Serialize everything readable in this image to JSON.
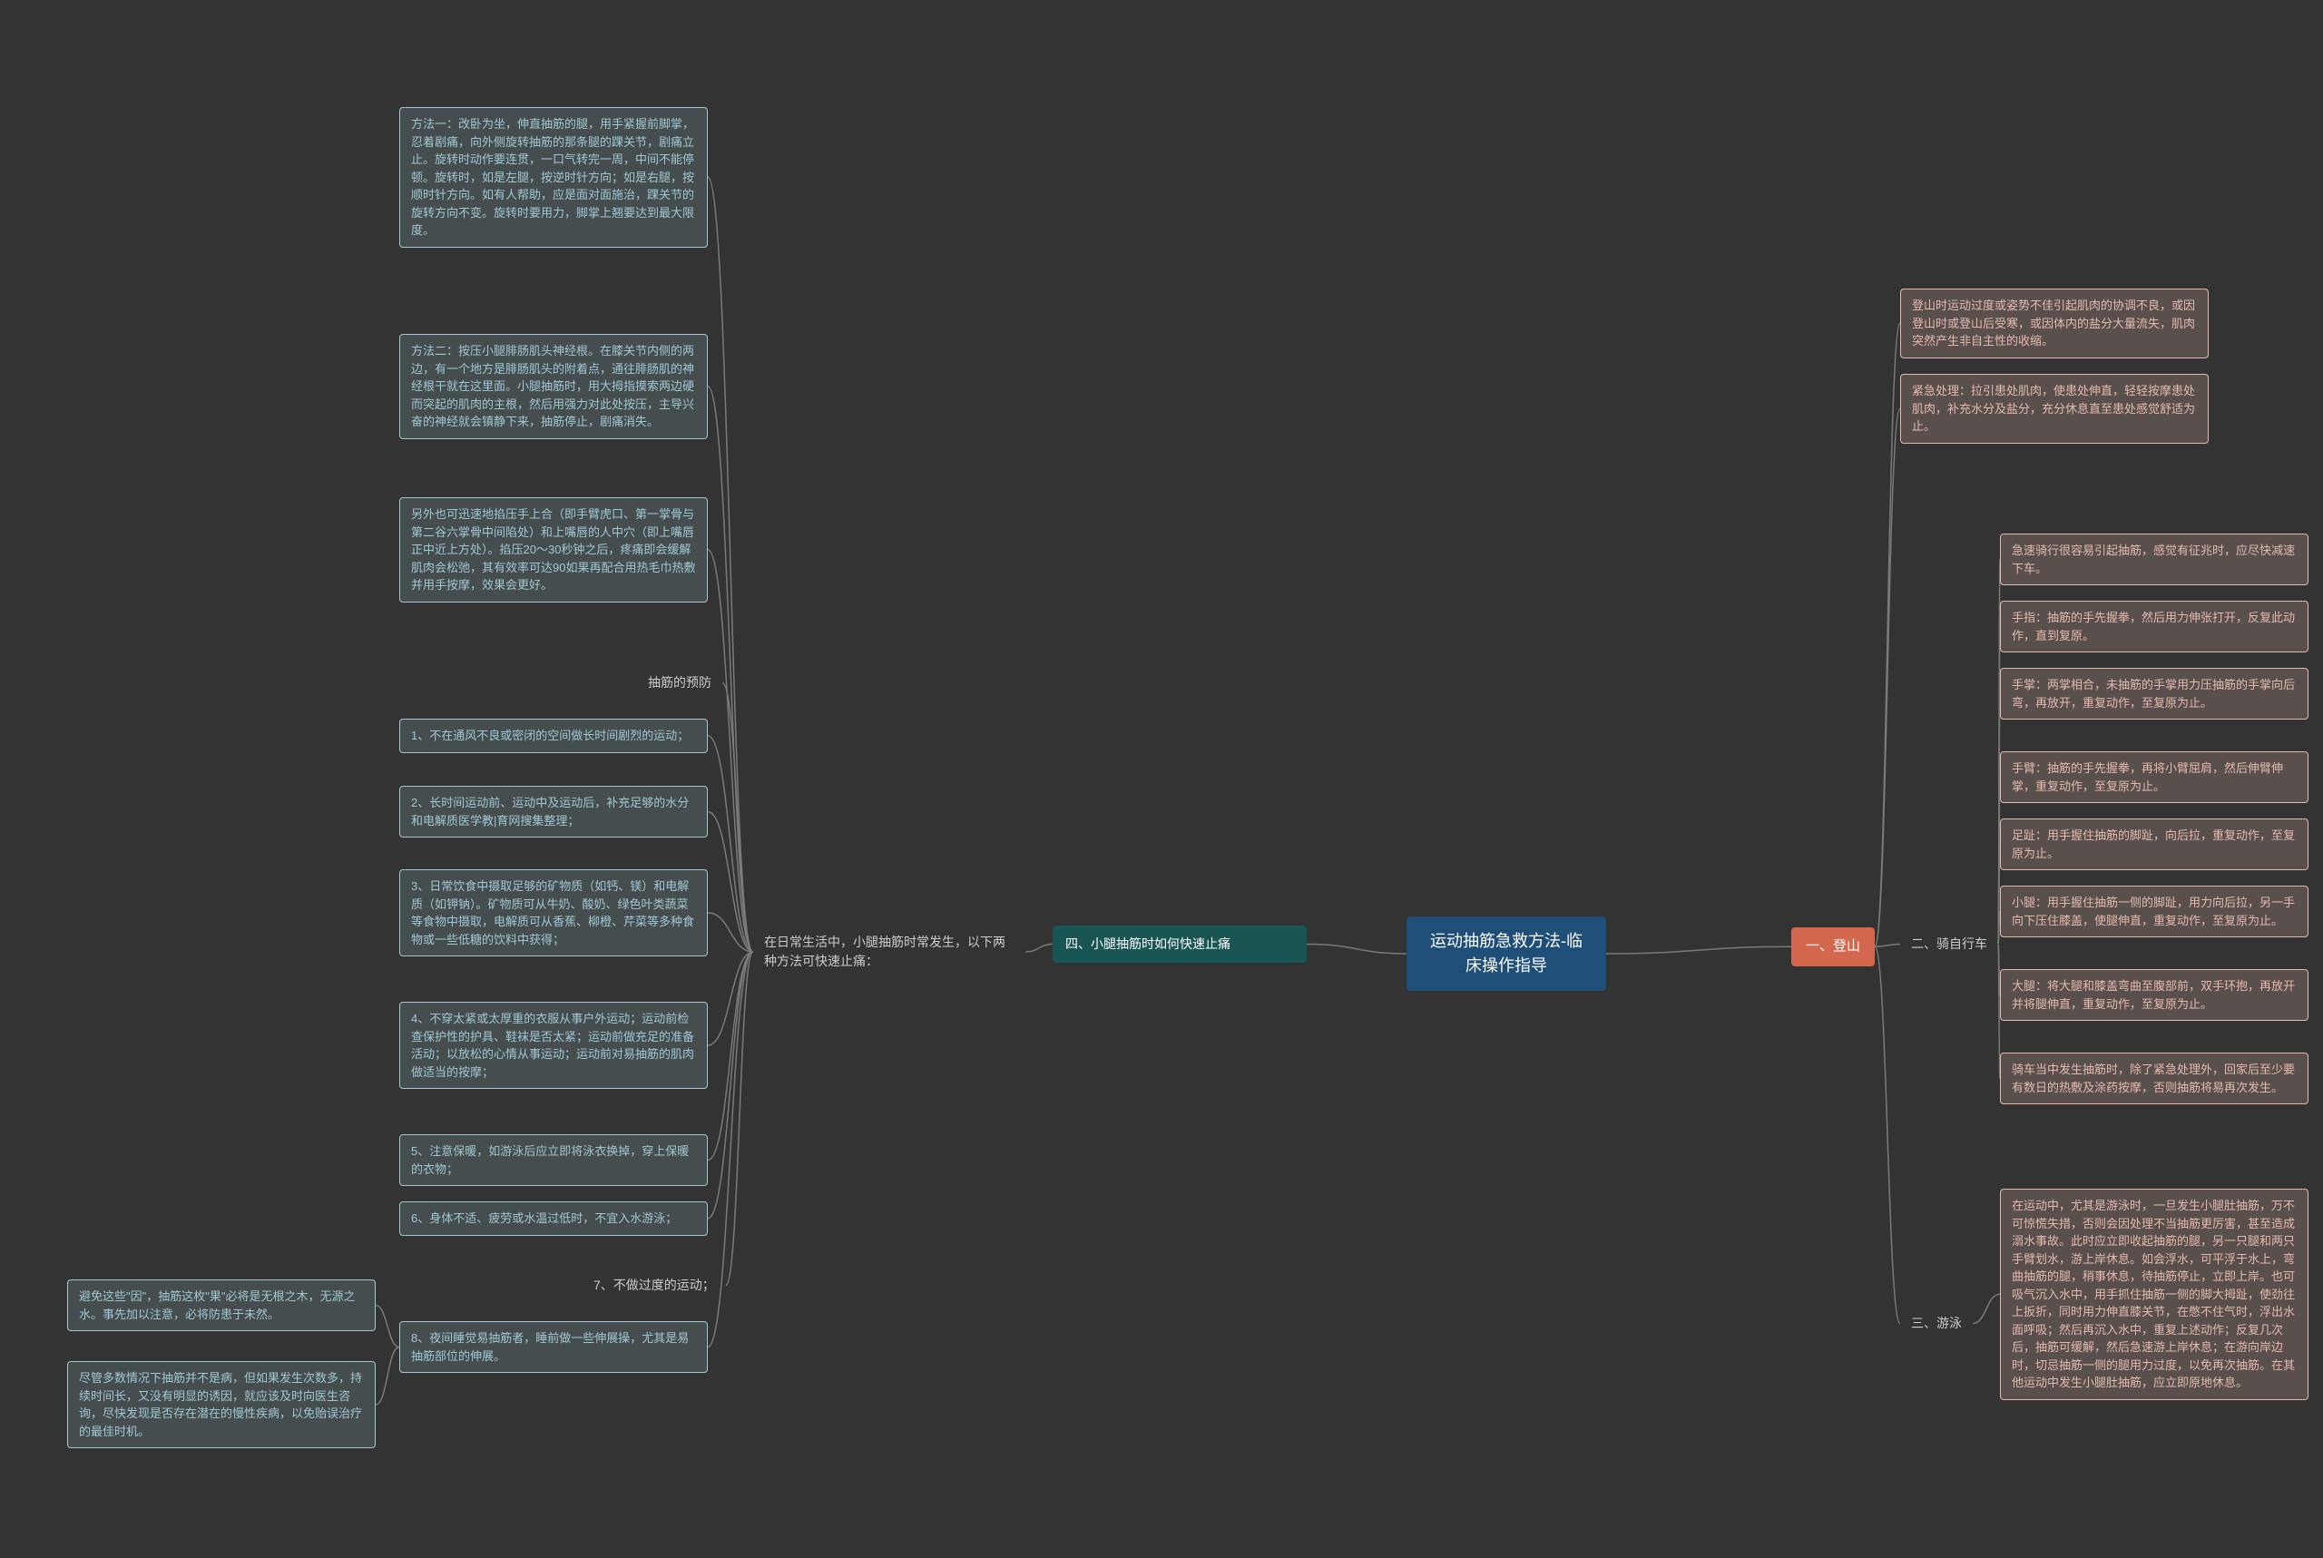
{
  "colors": {
    "bg": "#333333",
    "root": "#1f4e79",
    "orange": "#d4684f",
    "teal": "#2e8b8b",
    "darkteal": "#1a5555",
    "pinkBorder": "#e5b9af",
    "blueBorder": "#a0c8d2",
    "connector": "#7a7a7a",
    "labelText": "#cccccc"
  },
  "root": {
    "text": "运动抽筋急救方法-临床操作指导"
  },
  "r1": {
    "label": "一、登山",
    "a": "登山时运动过度或姿势不佳引起肌肉的协调不良，或因登山时或登山后受寒，或因体内的盐分大量流失，肌肉突然产生非自主性的收缩。",
    "b": "紧急处理：拉引患处肌肉，使患处伸直，轻轻按摩患处肌肉，补充水分及盐分，充分休息直至患处感觉舒适为止。"
  },
  "r2": {
    "label": "二、骑自行车",
    "a": "急速骑行很容易引起抽筋，感觉有征兆时，应尽快减速下车。",
    "b": "手指：抽筋的手先握拳，然后用力伸张打开，反复此动作，直到复原。",
    "c": "手掌：两掌相合，未抽筋的手掌用力压抽筋的手掌向后弯，再放开，重复动作，至复原为止。",
    "d": "手臂：抽筋的手先握拳，再将小臂屈肩，然后伸臂伸掌，重复动作，至复原为止。",
    "e": "足趾：用手握住抽筋的脚趾，向后拉，重复动作，至复原为止。",
    "f": "小腿：用手握住抽筋一侧的脚趾，用力向后拉，另一手向下压住膝盖，使腿伸直，重复动作，至复原为止。",
    "g": "大腿：将大腿和膝盖弯曲至腹部前，双手环抱，再放开并将腿伸直，重复动作，至复原为止。",
    "h": "骑车当中发生抽筋时，除了紧急处理外，回家后至少要有数日的热敷及涂药按摩，否则抽筋将易再次发生。"
  },
  "r3": {
    "label": "三、游泳",
    "a": "在运动中，尤其是游泳时，一旦发生小腿肚抽筋，万不可惊慌失措，否则会因处理不当抽筋更厉害，甚至造成溺水事故。此时应立即收起抽筋的腿，另一只腿和两只手臂划水，游上岸休息。如会浮水，可平浮于水上，弯曲抽筋的腿，稍事休息，待抽筋停止，立即上岸。也可吸气沉入水中，用手抓住抽筋一侧的脚大拇趾，使劲往上扳折，同时用力伸直膝关节，在憋不住气时，浮出水面呼吸；然后再沉入水中，重复上述动作；反复几次后，抽筋可缓解，然后急速游上岸休息；在游向岸边时，切忌抽筋一侧的腿用力过度，以免再次抽筋。在其他运动中发生小腿肚抽筋，应立即原地休息。"
  },
  "l1": {
    "label": "四、小腿抽筋时如何快速止痛",
    "intro": "在日常生活中，小腿抽筋时常发生，以下两种方法可快速止痛：",
    "m1": "方法一：改卧为坐，伸直抽筋的腿，用手紧握前脚掌，忍着剧痛，向外侧旋转抽筋的那条腿的踝关节，剧痛立止。旋转时动作要连贯，一口气转完一周，中间不能停顿。旋转时，如是左腿，按逆时针方向；如是右腿，按顺时针方向。如有人帮助，应是面对面施治，踝关节的旋转方向不变。旋转时要用力，脚掌上翘要达到最大限度。",
    "m2": "方法二：按压小腿腓肠肌头神经根。在膝关节内侧的两边，有一个地方是腓肠肌头的附着点，通往腓肠肌的神经根干就在这里面。小腿抽筋时，用大拇指摸索两边硬而突起的肌肉的主根，然后用强力对此处按压，主导兴奋的神经就会镇静下来，抽筋停止，剧痛消失。",
    "m3": "另外也可迅速地掐压手上合（即手臂虎口、第一掌骨与第二谷六掌骨中间陷处）和上嘴唇的人中穴（即上嘴唇正中近上方处）。掐压20～30秒钟之后，疼痛即会缓解肌肉会松弛，其有效率可达90如果再配合用热毛巾热敷并用手按摩，效果会更好。",
    "prev_label": "抽筋的预防",
    "p1": "1、不在通风不良或密闭的空间做长时间剧烈的运动；",
    "p2": "2、长时间运动前、运动中及运动后，补充足够的水分和电解质医学教|育网搜集整理；",
    "p3": "3、日常饮食中摄取足够的矿物质（如钙、镁）和电解质（如钾钠）。矿物质可从牛奶、酸奶、绿色叶类蔬菜等食物中摄取，电解质可从香蕉、柳橙、芹菜等多种食物或一些低糖的饮料中获得；",
    "p4": "4、不穿太紧或太厚重的衣服从事户外运动；运动前检查保护性的护具、鞋袜是否太紧；运动前做充足的准备活动；以放松的心情从事运动；运动前对易抽筋的肌肉做适当的按摩；",
    "p5": "5、注意保暖，如游泳后应立即将泳衣换掉，穿上保暖的衣物；",
    "p6": "6、身体不适、疲劳或水温过低时，不宜入水游泳；",
    "p7": "7、不做过度的运动；",
    "p8": "8、夜间睡觉易抽筋者，睡前做一些伸展操，尤其是易抽筋部位的伸展。",
    "p8a": "避免这些\"因\"，抽筋这枚\"果\"必将是无根之木，无源之水。事先加以注意，必将防患于未然。",
    "p8b": "尽管多数情况下抽筋并不是病，但如果发生次数多，持续时间长，又没有明显的诱因，就应该及时向医生咨询，尽快发现是否存在潜在的慢性疾病，以免贻误治疗的最佳时机。"
  }
}
